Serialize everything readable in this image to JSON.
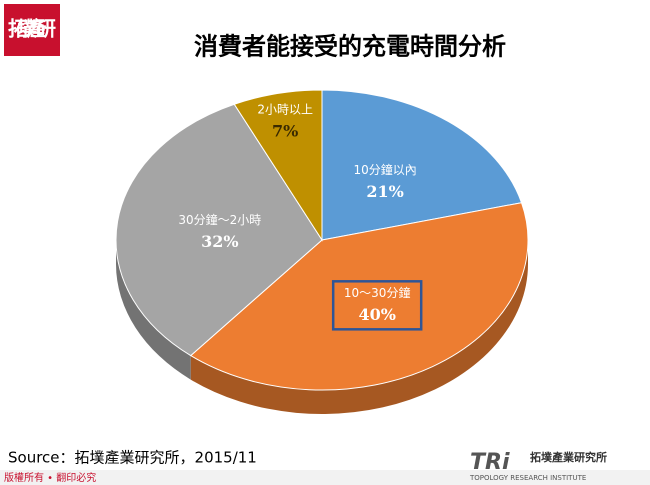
{
  "logo": "拓墣產研",
  "chart_data": {
    "type": "pie",
    "title": "消費者能接受的充電時間分析",
    "categories": [
      "10分鐘以內",
      "10～30分鐘",
      "30分鐘～2小時",
      "2小時以上"
    ],
    "values": [
      21,
      40,
      32,
      7
    ],
    "value_labels": [
      "21%",
      "40%",
      "32%",
      "7%"
    ],
    "colors": [
      "#5b9bd5",
      "#ed7d31",
      "#a5a5a5",
      "#bf9000"
    ]
  },
  "source": "Source：拓墣產業研究所，2015/11",
  "footer": "版權所有 • 翻印必究",
  "brand": {
    "mark": "TRi",
    "name": "拓墣產業研究所",
    "english": "TOPOLOGY RESEARCH INSTITUTE"
  }
}
